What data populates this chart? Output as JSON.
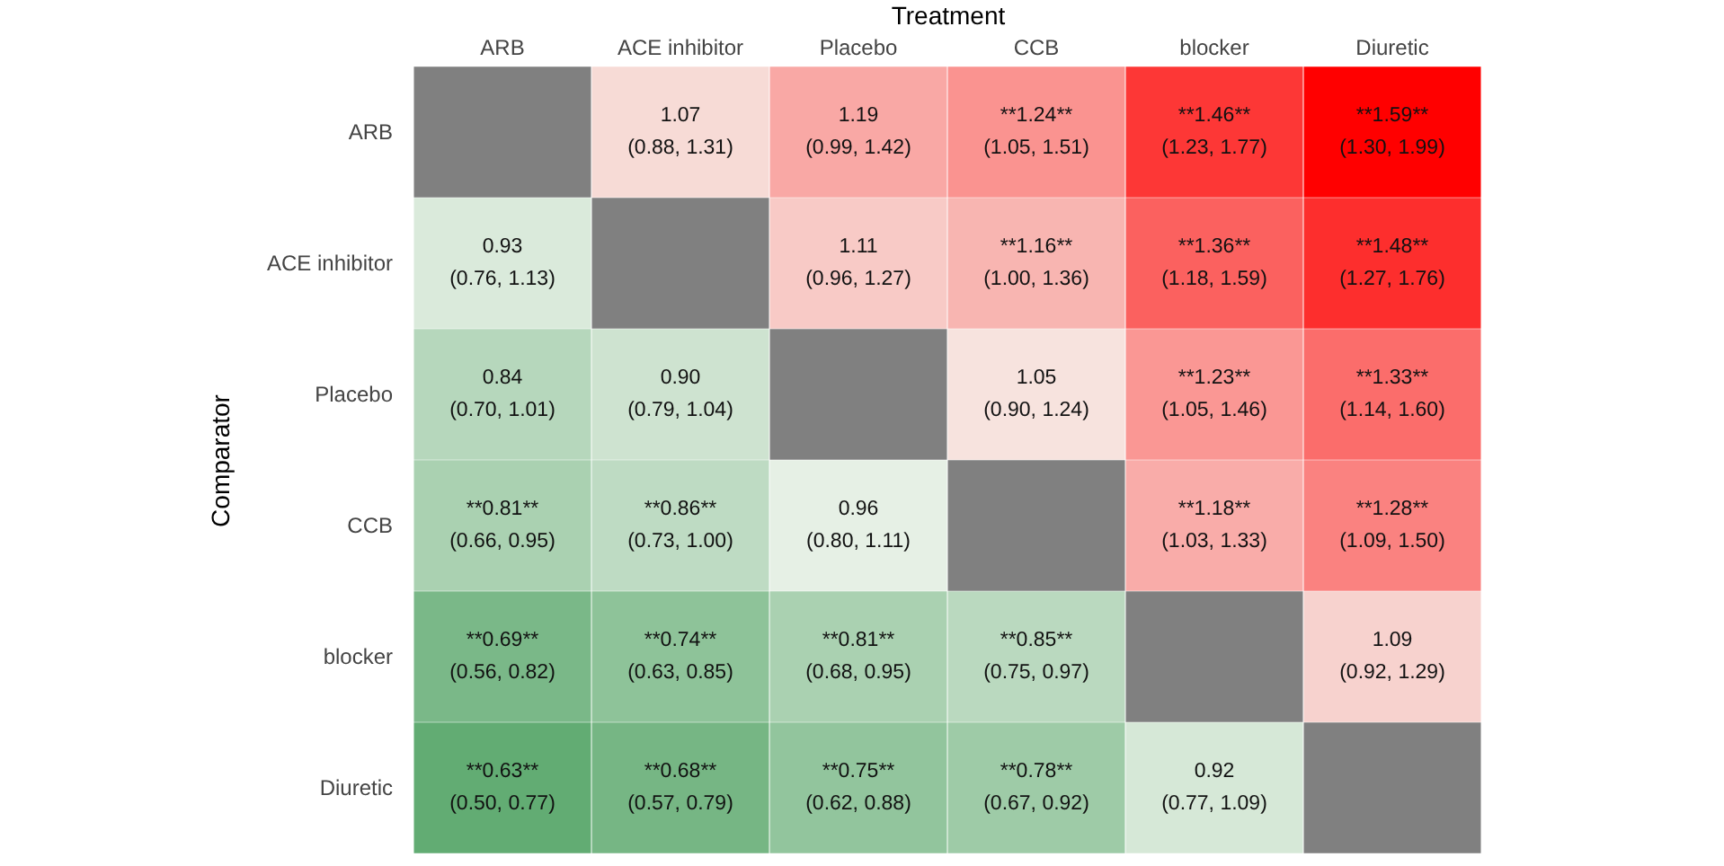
{
  "chart_data": {
    "type": "heatmap",
    "xlabel": "Treatment",
    "ylabel": "Comparator",
    "categories": [
      "ARB",
      "ACE inhibitor",
      "Placebo",
      "CCB",
      "blocker",
      "Diuretic"
    ],
    "y_categories": [
      "ARB",
      "ACE inhibitor",
      "Placebo",
      "CCB",
      "blocker",
      "Diuretic"
    ],
    "cells": [
      [
        null,
        1.07,
        1.19,
        1.24,
        1.46,
        1.59
      ],
      [
        0.93,
        null,
        1.11,
        1.16,
        1.36,
        1.48
      ],
      [
        0.84,
        0.9,
        null,
        1.05,
        1.23,
        1.33
      ],
      [
        0.81,
        0.86,
        0.96,
        null,
        1.18,
        1.28
      ],
      [
        0.69,
        0.74,
        0.81,
        0.85,
        null,
        1.09
      ],
      [
        0.63,
        0.68,
        0.75,
        0.78,
        0.92,
        null
      ]
    ],
    "cell_labels": [
      [
        null,
        "1.07",
        "1.19",
        "**1.24**",
        "**1.46**",
        "**1.59**"
      ],
      [
        "0.93",
        null,
        "1.11",
        "**1.16**",
        "**1.36**",
        "**1.48**"
      ],
      [
        "0.84",
        "0.90",
        null,
        "1.05",
        "**1.23**",
        "**1.33**"
      ],
      [
        "**0.81**",
        "**0.86**",
        "0.96",
        null,
        "**1.18**",
        "**1.28**"
      ],
      [
        "**0.69**",
        "**0.74**",
        "**0.81**",
        "**0.85**",
        null,
        "1.09"
      ],
      [
        "**0.63**",
        "**0.68**",
        "**0.75**",
        "**0.78**",
        "0.92",
        null
      ]
    ],
    "annotations": [
      "(0.88, 1.31)",
      "(0.99, 1.42)",
      "(1.05, 1.51)",
      "(1.23, 1.77)",
      "(1.30, 1.99)",
      "(0.76, 1.13)",
      "(0.96, 1.27)",
      "(1.00, 1.36)",
      "(1.18, 1.59)",
      "(1.27, 1.76)",
      "(0.70, 1.01)",
      "(0.79, 1.04)",
      "(0.90, 1.24)",
      "(1.05, 1.46)",
      "(1.14, 1.60)",
      "(0.66, 0.95)",
      "(0.73, 1.00)",
      "(0.80, 1.11)",
      "(1.03, 1.33)",
      "(1.09, 1.50)",
      "(0.56, 0.82)",
      "(0.63, 0.85)",
      "(0.68, 0.95)",
      "(0.75, 0.97)",
      "(0.92, 1.29)",
      "(0.50, 0.77)",
      "(0.57, 0.79)",
      "(0.62, 0.88)",
      "(0.67, 0.92)",
      "(0.77, 1.09)"
    ]
  }
}
